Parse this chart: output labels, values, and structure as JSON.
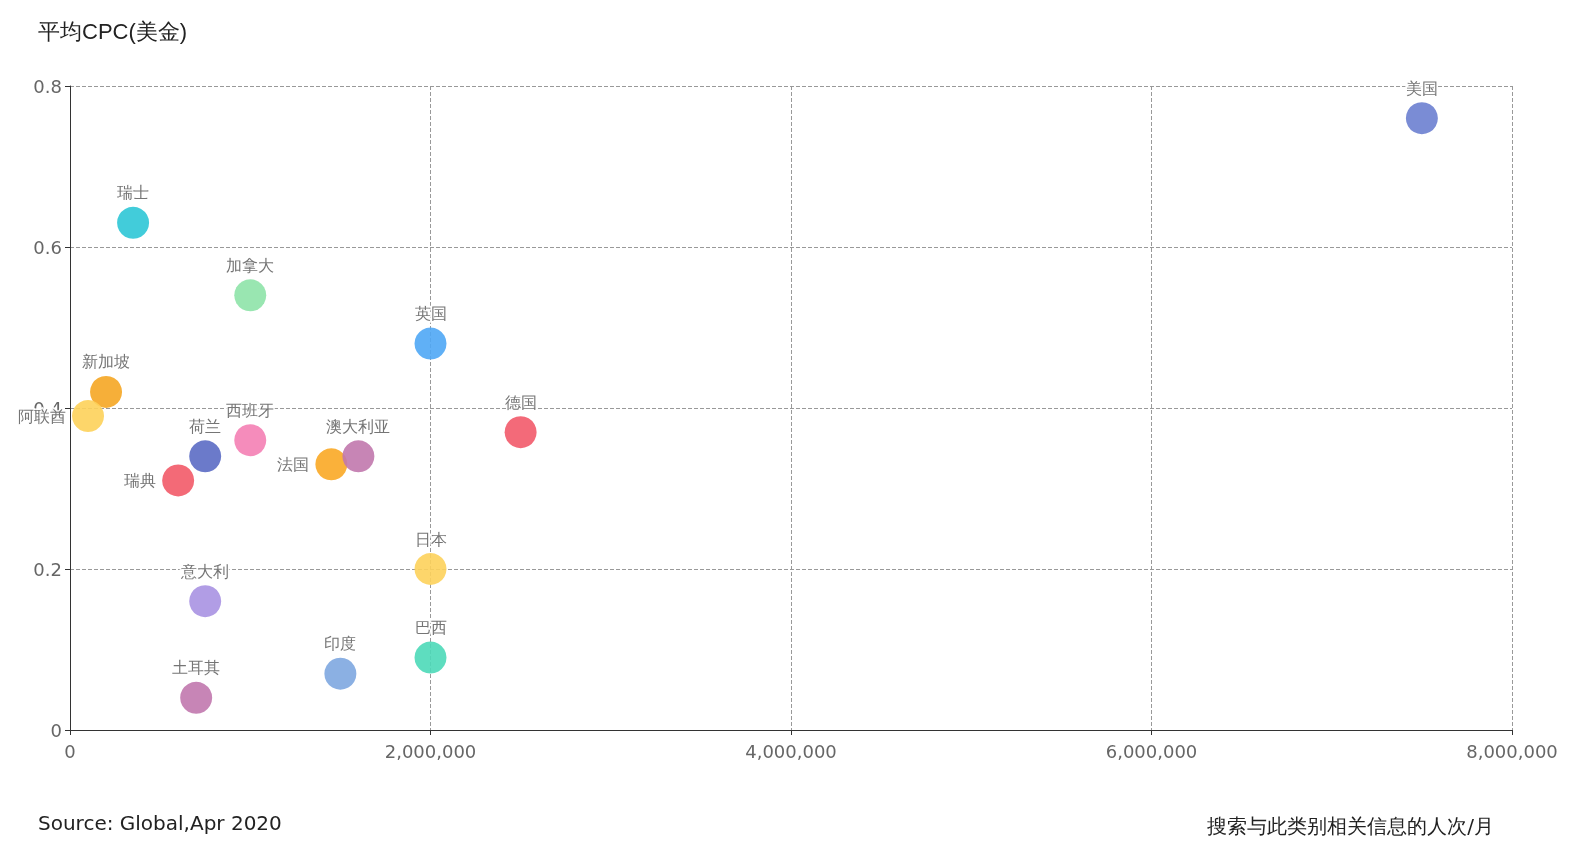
{
  "chart_data": {
    "type": "scatter",
    "ylabel": "平均CPC(美金)",
    "xlabel": "搜索与此类别相关信息的人次/月",
    "annotations": [
      "Source: Global,Apr 2020"
    ],
    "xlim": [
      0,
      8000000
    ],
    "xticks": [
      0,
      {
        "value": 2000000,
        "label": "2,000,000"
      },
      {
        "value": 4000000,
        "label": "4,000,000"
      },
      {
        "value": 6000000,
        "label": "6,000,000"
      },
      {
        "value": 8000000,
        "label": "8,000,000"
      }
    ],
    "ylim": [
      0,
      0.8
    ],
    "yticks": [
      0,
      0.2,
      0.4,
      0.6,
      0.8
    ],
    "grid": true,
    "legend": false,
    "marker": "circle",
    "series": [
      {
        "name": "美国",
        "color": "#6b7fd0",
        "x": [
          7500000
        ],
        "values": [
          0.76
        ]
      },
      {
        "name": "瑞士",
        "color": "#2ec7d6",
        "x": [
          350000
        ],
        "values": [
          0.63
        ]
      },
      {
        "name": "加拿大",
        "color": "#8ee3a8",
        "x": [
          1000000
        ],
        "values": [
          0.54
        ]
      },
      {
        "name": "英国",
        "color": "#4fa7f5",
        "x": [
          2000000
        ],
        "values": [
          0.48
        ]
      },
      {
        "name": "新加坡",
        "color": "#f5a623",
        "x": [
          200000
        ],
        "values": [
          0.42
        ]
      },
      {
        "name": "阿联酋",
        "color": "#fdd25a",
        "x": [
          100000
        ],
        "values": [
          0.39
        ]
      },
      {
        "name": "荷兰",
        "color": "#5b6cc4",
        "x": [
          750000
        ],
        "values": [
          0.34
        ]
      },
      {
        "name": "西班牙",
        "color": "#f47fb4",
        "x": [
          1000000
        ],
        "values": [
          0.36
        ]
      },
      {
        "name": "瑞典",
        "color": "#f25a68",
        "x": [
          600000
        ],
        "values": [
          0.31
        ]
      },
      {
        "name": "法国",
        "color": "#f9a825",
        "x": [
          1450000
        ],
        "values": [
          0.33
        ]
      },
      {
        "name": "澳大利亚",
        "color": "#c178ad",
        "x": [
          1600000
        ],
        "values": [
          0.34
        ]
      },
      {
        "name": "德国",
        "color": "#f25a6a",
        "x": [
          2500000
        ],
        "values": [
          0.37
        ]
      },
      {
        "name": "日本",
        "color": "#fdd25b",
        "x": [
          2000000
        ],
        "values": [
          0.2
        ]
      },
      {
        "name": "意大利",
        "color": "#a992e2",
        "x": [
          750000
        ],
        "values": [
          0.16
        ]
      },
      {
        "name": "巴西",
        "color": "#4dd9b8",
        "x": [
          2000000
        ],
        "values": [
          0.09
        ]
      },
      {
        "name": "印度",
        "color": "#7ea7e0",
        "x": [
          1500000
        ],
        "values": [
          0.07
        ]
      },
      {
        "name": "土耳其",
        "color": "#c178ae",
        "x": [
          700000
        ],
        "values": [
          0.04
        ]
      }
    ]
  }
}
